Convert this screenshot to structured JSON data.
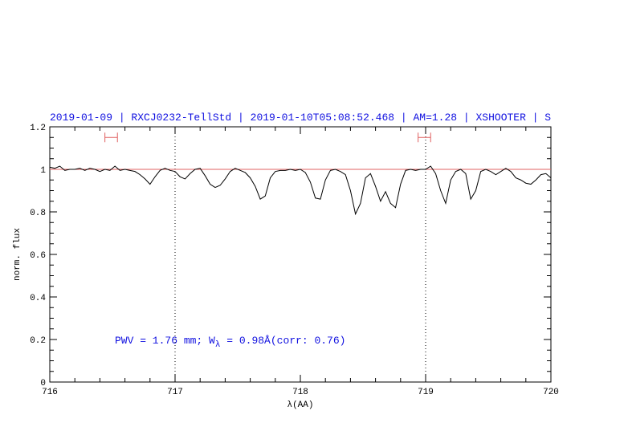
{
  "chart_data": {
    "type": "line",
    "title": "2019-01-09 | RXCJ0232-TellStd | 2019-01-10T05:08:52.468 | AM=1.28 | XSHOOTER | S",
    "x_label": "λ(AA)",
    "y_label": "norm. flux",
    "annotation": [
      "PWV = 1.76 mm; W",
      "λ",
      " = 0.98Å(corr: 0.76)"
    ],
    "xlim": [
      716,
      720
    ],
    "ylim": [
      0,
      1.2
    ],
    "xticks": [
      716,
      717,
      718,
      719,
      720
    ],
    "yticks": [
      0,
      0.2,
      0.4,
      0.6,
      0.8,
      1,
      1.2
    ],
    "xminorticks": [
      716.2,
      716.4,
      716.6,
      716.8,
      717.2,
      717.4,
      717.6,
      717.8,
      718.2,
      718.4,
      718.6,
      718.8,
      719.2,
      719.4,
      719.6,
      719.8
    ],
    "yminorticks": [
      0.05,
      0.1,
      0.15,
      0.25,
      0.3,
      0.35,
      0.45,
      0.5,
      0.55,
      0.65,
      0.7,
      0.75,
      0.85,
      0.9,
      0.95,
      1.05,
      1.1,
      1.15
    ],
    "vlines": [
      717,
      719
    ],
    "reference": {
      "value": 1,
      "color": "#e06060"
    },
    "intervals": {
      "color": "#e06060",
      "items": [
        {
          "x": [
            716.44,
            716.54
          ],
          "y": 1.15
        },
        {
          "x": [
            718.94,
            719.04
          ],
          "y": 1.15
        }
      ]
    },
    "x": [
      716.0,
      716.04,
      716.08,
      716.12,
      716.16,
      716.2,
      716.24,
      716.28,
      716.32,
      716.36,
      716.4,
      716.44,
      716.48,
      716.52,
      716.56,
      716.6,
      716.64,
      716.68,
      716.72,
      716.76,
      716.8,
      716.84,
      716.88,
      716.92,
      716.96,
      717.0,
      717.04,
      717.08,
      717.12,
      717.16,
      717.2,
      717.24,
      717.28,
      717.32,
      717.36,
      717.4,
      717.44,
      717.48,
      717.52,
      717.56,
      717.6,
      717.64,
      717.68,
      717.72,
      717.76,
      717.8,
      717.84,
      717.88,
      717.92,
      717.96,
      718.0,
      718.04,
      718.08,
      718.12,
      718.16,
      718.2,
      718.24,
      718.28,
      718.32,
      718.36,
      718.4,
      718.44,
      718.48,
      718.52,
      718.56,
      718.6,
      718.64,
      718.68,
      718.72,
      718.76,
      718.8,
      718.84,
      718.88,
      718.92,
      718.96,
      719.0,
      719.04,
      719.08,
      719.12,
      719.16,
      719.2,
      719.24,
      719.28,
      719.32,
      719.36,
      719.4,
      719.44,
      719.48,
      719.52,
      719.56,
      719.6,
      719.64,
      719.68,
      719.72,
      719.76,
      719.8,
      719.84,
      719.88,
      719.92,
      719.96,
      720.0
    ],
    "series": [
      {
        "color": "#000000",
        "values": [
          1.01,
          1.005,
          1.015,
          0.995,
          1.0,
          1.0,
          1.005,
          0.995,
          1.005,
          1.0,
          0.99,
          1.0,
          0.995,
          1.015,
          0.995,
          1.0,
          0.995,
          0.99,
          0.975,
          0.955,
          0.93,
          0.965,
          0.995,
          1.005,
          0.995,
          0.99,
          0.965,
          0.955,
          0.98,
          1.0,
          1.005,
          0.97,
          0.93,
          0.915,
          0.925,
          0.955,
          0.99,
          1.005,
          0.995,
          0.985,
          0.96,
          0.92,
          0.86,
          0.875,
          0.96,
          0.99,
          0.995,
          0.995,
          1.0,
          0.995,
          1.0,
          0.985,
          0.94,
          0.865,
          0.86,
          0.95,
          0.995,
          1.0,
          0.99,
          0.975,
          0.9,
          0.79,
          0.84,
          0.96,
          0.98,
          0.92,
          0.85,
          0.895,
          0.84,
          0.82,
          0.93,
          0.995,
          1.0,
          0.995,
          1.0,
          1.0,
          1.015,
          0.98,
          0.9,
          0.84,
          0.95,
          0.99,
          1.0,
          0.98,
          0.86,
          0.9,
          0.99,
          1.0,
          0.99,
          0.975,
          0.99,
          1.005,
          0.99,
          0.96,
          0.95,
          0.935,
          0.93,
          0.95,
          0.975,
          0.98,
          0.96
        ]
      }
    ],
    "title_color": "#1010e0"
  }
}
